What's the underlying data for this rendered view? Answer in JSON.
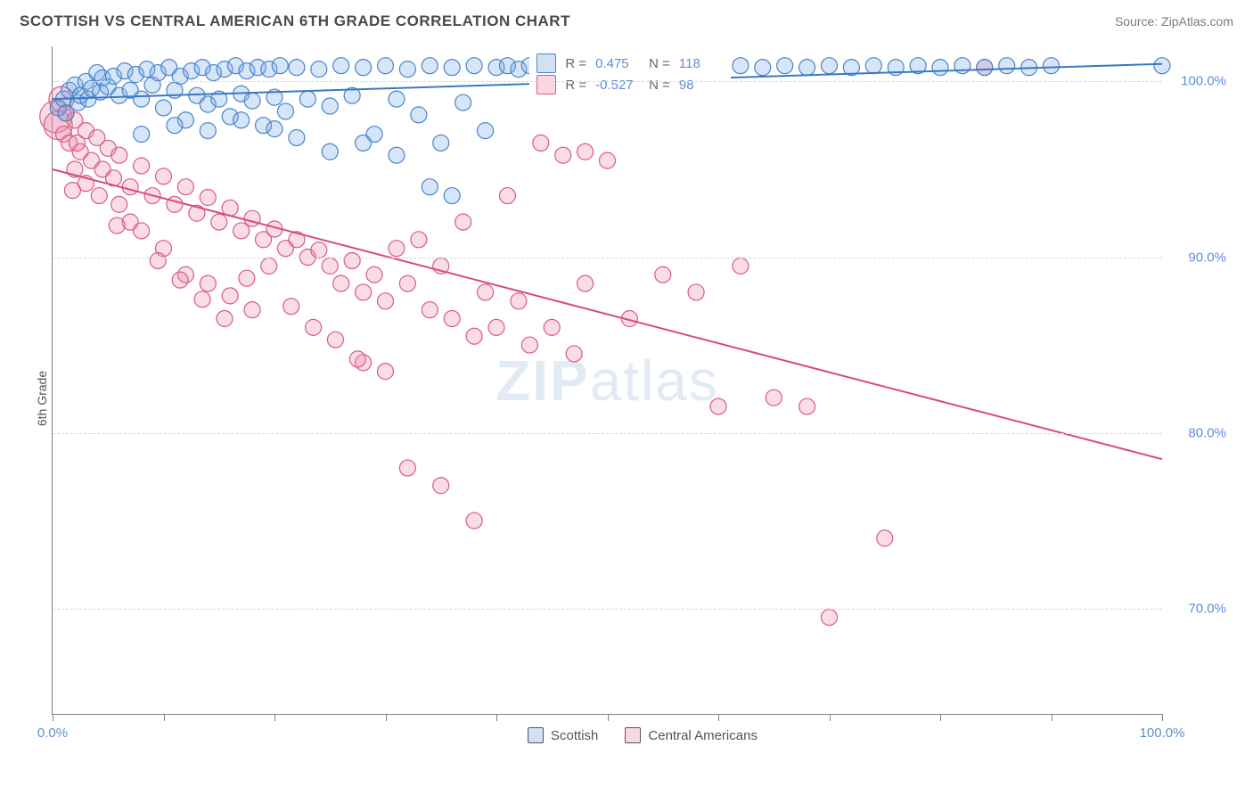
{
  "header": {
    "title": "SCOTTISH VS CENTRAL AMERICAN 6TH GRADE CORRELATION CHART",
    "source": "Source: ZipAtlas.com"
  },
  "chart": {
    "type": "scatter",
    "ylabel": "6th Grade",
    "watermark_a": "ZIP",
    "watermark_b": "atlas",
    "xlim": [
      0,
      100
    ],
    "ylim": [
      64,
      102
    ],
    "xtick_positions": [
      0,
      10,
      20,
      30,
      40,
      50,
      60,
      70,
      80,
      90,
      100
    ],
    "xtick_labels": {
      "0": "0.0%",
      "100": "100.0%"
    },
    "ytick_positions": [
      70,
      80,
      90,
      100
    ],
    "ytick_labels": [
      "70.0%",
      "80.0%",
      "90.0%",
      "100.0%"
    ],
    "grid_color": "#d8d8d8",
    "background_color": "#ffffff",
    "axis_color": "#808080",
    "tick_label_color": "#5b8fd6",
    "series": {
      "scottish": {
        "label": "Scottish",
        "color_fill": "rgba(120,170,230,0.30)",
        "color_stroke": "#4a85c9",
        "marker_radius": 9,
        "R_label": "R =",
        "R": "0.475",
        "N_label": "N =",
        "N": "118",
        "trend": {
          "x1": 0,
          "y1": 99.0,
          "x2": 100,
          "y2": 101.0,
          "color": "#3a78c2",
          "width": 2
        },
        "points": [
          {
            "x": 0.5,
            "y": 98.5
          },
          {
            "x": 1,
            "y": 99.0
          },
          {
            "x": 1.2,
            "y": 98.2
          },
          {
            "x": 1.5,
            "y": 99.5
          },
          {
            "x": 2,
            "y": 99.8
          },
          {
            "x": 2.3,
            "y": 98.8
          },
          {
            "x": 2.5,
            "y": 99.2
          },
          {
            "x": 3,
            "y": 100.0
          },
          {
            "x": 3.2,
            "y": 99.0
          },
          {
            "x": 3.5,
            "y": 99.6
          },
          {
            "x": 4,
            "y": 100.5
          },
          {
            "x": 4.3,
            "y": 99.4
          },
          {
            "x": 4.5,
            "y": 100.2
          },
          {
            "x": 5,
            "y": 99.7
          },
          {
            "x": 5.5,
            "y": 100.3
          },
          {
            "x": 6,
            "y": 99.2
          },
          {
            "x": 6.5,
            "y": 100.6
          },
          {
            "x": 7,
            "y": 99.5
          },
          {
            "x": 7.5,
            "y": 100.4
          },
          {
            "x": 8,
            "y": 99.0
          },
          {
            "x": 8.5,
            "y": 100.7
          },
          {
            "x": 9,
            "y": 99.8
          },
          {
            "x": 9.5,
            "y": 100.5
          },
          {
            "x": 10,
            "y": 98.5
          },
          {
            "x": 10.5,
            "y": 100.8
          },
          {
            "x": 11,
            "y": 99.5
          },
          {
            "x": 11.5,
            "y": 100.3
          },
          {
            "x": 12,
            "y": 97.8
          },
          {
            "x": 12.5,
            "y": 100.6
          },
          {
            "x": 13,
            "y": 99.2
          },
          {
            "x": 13.5,
            "y": 100.8
          },
          {
            "x": 14,
            "y": 98.7
          },
          {
            "x": 14.5,
            "y": 100.5
          },
          {
            "x": 15,
            "y": 99.0
          },
          {
            "x": 15.5,
            "y": 100.7
          },
          {
            "x": 16,
            "y": 98.0
          },
          {
            "x": 16.5,
            "y": 100.9
          },
          {
            "x": 17,
            "y": 99.3
          },
          {
            "x": 17.5,
            "y": 100.6
          },
          {
            "x": 18,
            "y": 98.9
          },
          {
            "x": 18.5,
            "y": 100.8
          },
          {
            "x": 19,
            "y": 97.5
          },
          {
            "x": 19.5,
            "y": 100.7
          },
          {
            "x": 20,
            "y": 99.1
          },
          {
            "x": 20.5,
            "y": 100.9
          },
          {
            "x": 21,
            "y": 98.3
          },
          {
            "x": 22,
            "y": 100.8
          },
          {
            "x": 23,
            "y": 99.0
          },
          {
            "x": 24,
            "y": 100.7
          },
          {
            "x": 25,
            "y": 98.6
          },
          {
            "x": 26,
            "y": 100.9
          },
          {
            "x": 27,
            "y": 99.2
          },
          {
            "x": 28,
            "y": 100.8
          },
          {
            "x": 29,
            "y": 97.0
          },
          {
            "x": 30,
            "y": 100.9
          },
          {
            "x": 31,
            "y": 99.0
          },
          {
            "x": 32,
            "y": 100.7
          },
          {
            "x": 33,
            "y": 98.1
          },
          {
            "x": 34,
            "y": 100.9
          },
          {
            "x": 35,
            "y": 96.5
          },
          {
            "x": 36,
            "y": 100.8
          },
          {
            "x": 37,
            "y": 98.8
          },
          {
            "x": 38,
            "y": 100.9
          },
          {
            "x": 39,
            "y": 97.2
          },
          {
            "x": 40,
            "y": 100.8
          },
          {
            "x": 41,
            "y": 100.9
          },
          {
            "x": 42,
            "y": 100.7
          },
          {
            "x": 43,
            "y": 100.9
          },
          {
            "x": 44,
            "y": 100.8
          },
          {
            "x": 45,
            "y": 100.9
          },
          {
            "x": 46,
            "y": 100.7
          },
          {
            "x": 47,
            "y": 100.9
          },
          {
            "x": 48,
            "y": 100.8
          },
          {
            "x": 49,
            "y": 100.9
          },
          {
            "x": 50,
            "y": 100.7
          },
          {
            "x": 51,
            "y": 100.9
          },
          {
            "x": 52,
            "y": 100.8
          },
          {
            "x": 53,
            "y": 100.9
          },
          {
            "x": 54,
            "y": 100.7
          },
          {
            "x": 55,
            "y": 100.9
          },
          {
            "x": 56,
            "y": 100.8
          },
          {
            "x": 58,
            "y": 100.9
          },
          {
            "x": 60,
            "y": 100.8
          },
          {
            "x": 62,
            "y": 100.9
          },
          {
            "x": 64,
            "y": 100.8
          },
          {
            "x": 66,
            "y": 100.9
          },
          {
            "x": 68,
            "y": 100.8
          },
          {
            "x": 70,
            "y": 100.9
          },
          {
            "x": 72,
            "y": 100.8
          },
          {
            "x": 74,
            "y": 100.9
          },
          {
            "x": 76,
            "y": 100.8
          },
          {
            "x": 78,
            "y": 100.9
          },
          {
            "x": 80,
            "y": 100.8
          },
          {
            "x": 82,
            "y": 100.9
          },
          {
            "x": 84,
            "y": 100.8
          },
          {
            "x": 86,
            "y": 100.9
          },
          {
            "x": 88,
            "y": 100.8
          },
          {
            "x": 90,
            "y": 100.9
          },
          {
            "x": 100,
            "y": 100.9
          },
          {
            "x": 8,
            "y": 97.0
          },
          {
            "x": 11,
            "y": 97.5
          },
          {
            "x": 14,
            "y": 97.2
          },
          {
            "x": 17,
            "y": 97.8
          },
          {
            "x": 20,
            "y": 97.3
          },
          {
            "x": 22,
            "y": 96.8
          },
          {
            "x": 25,
            "y": 96.0
          },
          {
            "x": 28,
            "y": 96.5
          },
          {
            "x": 31,
            "y": 95.8
          },
          {
            "x": 34,
            "y": 94.0
          },
          {
            "x": 36,
            "y": 93.5
          }
        ]
      },
      "central_americans": {
        "label": "Central Americans",
        "color_fill": "rgba(235,140,170,0.30)",
        "color_stroke": "#d95b85",
        "marker_radius": 9,
        "R_label": "R =",
        "R": "-0.527",
        "N_label": "N =",
        "N": "98",
        "trend": {
          "x1": 0,
          "y1": 95.0,
          "x2": 100,
          "y2": 78.5,
          "color": "#d94a78",
          "width": 2
        },
        "points": [
          {
            "x": 0.3,
            "y": 98.0,
            "r": 18
          },
          {
            "x": 0.5,
            "y": 97.5,
            "r": 16
          },
          {
            "x": 0.8,
            "y": 99.0,
            "r": 14
          },
          {
            "x": 1,
            "y": 97.0
          },
          {
            "x": 1.2,
            "y": 98.2
          },
          {
            "x": 1.5,
            "y": 96.5
          },
          {
            "x": 2,
            "y": 97.8
          },
          {
            "x": 2.5,
            "y": 96.0
          },
          {
            "x": 3,
            "y": 97.2
          },
          {
            "x": 3.5,
            "y": 95.5
          },
          {
            "x": 4,
            "y": 96.8
          },
          {
            "x": 4.5,
            "y": 95.0
          },
          {
            "x": 5,
            "y": 96.2
          },
          {
            "x": 5.5,
            "y": 94.5
          },
          {
            "x": 6,
            "y": 95.8
          },
          {
            "x": 7,
            "y": 94.0
          },
          {
            "x": 8,
            "y": 95.2
          },
          {
            "x": 9,
            "y": 93.5
          },
          {
            "x": 10,
            "y": 94.6
          },
          {
            "x": 11,
            "y": 93.0
          },
          {
            "x": 12,
            "y": 94.0
          },
          {
            "x": 13,
            "y": 92.5
          },
          {
            "x": 14,
            "y": 93.4
          },
          {
            "x": 15,
            "y": 92.0
          },
          {
            "x": 16,
            "y": 92.8
          },
          {
            "x": 17,
            "y": 91.5
          },
          {
            "x": 18,
            "y": 92.2
          },
          {
            "x": 19,
            "y": 91.0
          },
          {
            "x": 20,
            "y": 91.6
          },
          {
            "x": 21,
            "y": 90.5
          },
          {
            "x": 22,
            "y": 91.0
          },
          {
            "x": 23,
            "y": 90.0
          },
          {
            "x": 24,
            "y": 90.4
          },
          {
            "x": 25,
            "y": 89.5
          },
          {
            "x": 26,
            "y": 88.5
          },
          {
            "x": 27,
            "y": 89.8
          },
          {
            "x": 28,
            "y": 88.0
          },
          {
            "x": 29,
            "y": 89.0
          },
          {
            "x": 30,
            "y": 87.5
          },
          {
            "x": 31,
            "y": 90.5
          },
          {
            "x": 32,
            "y": 88.5
          },
          {
            "x": 33,
            "y": 91.0
          },
          {
            "x": 34,
            "y": 87.0
          },
          {
            "x": 35,
            "y": 89.5
          },
          {
            "x": 36,
            "y": 86.5
          },
          {
            "x": 37,
            "y": 92.0
          },
          {
            "x": 38,
            "y": 85.5
          },
          {
            "x": 39,
            "y": 88.0
          },
          {
            "x": 40,
            "y": 86.0
          },
          {
            "x": 41,
            "y": 93.5
          },
          {
            "x": 42,
            "y": 87.5
          },
          {
            "x": 43,
            "y": 85.0
          },
          {
            "x": 44,
            "y": 96.5
          },
          {
            "x": 45,
            "y": 86.0
          },
          {
            "x": 46,
            "y": 95.8
          },
          {
            "x": 47,
            "y": 84.5
          },
          {
            "x": 48,
            "y": 88.5
          },
          {
            "x": 50,
            "y": 95.5
          },
          {
            "x": 52,
            "y": 86.5
          },
          {
            "x": 55,
            "y": 89.0
          },
          {
            "x": 58,
            "y": 88.0
          },
          {
            "x": 60,
            "y": 81.5
          },
          {
            "x": 62,
            "y": 89.5
          },
          {
            "x": 65,
            "y": 82.0
          },
          {
            "x": 68,
            "y": 81.5
          },
          {
            "x": 70,
            "y": 69.5
          },
          {
            "x": 75,
            "y": 74.0
          },
          {
            "x": 32,
            "y": 78.0
          },
          {
            "x": 35,
            "y": 77.0
          },
          {
            "x": 38,
            "y": 75.0
          },
          {
            "x": 28,
            "y": 84.0
          },
          {
            "x": 30,
            "y": 83.5
          },
          {
            "x": 84,
            "y": 100.8
          },
          {
            "x": 10,
            "y": 90.5
          },
          {
            "x": 12,
            "y": 89.0
          },
          {
            "x": 14,
            "y": 88.5
          },
          {
            "x": 16,
            "y": 87.8
          },
          {
            "x": 18,
            "y": 87.0
          },
          {
            "x": 6,
            "y": 93.0
          },
          {
            "x": 7,
            "y": 92.0
          },
          {
            "x": 8,
            "y": 91.5
          },
          {
            "x": 2,
            "y": 95.0
          },
          {
            "x": 3,
            "y": 94.2
          },
          {
            "x": 1.8,
            "y": 93.8
          },
          {
            "x": 2.2,
            "y": 96.5
          },
          {
            "x": 4.2,
            "y": 93.5
          },
          {
            "x": 5.8,
            "y": 91.8
          },
          {
            "x": 9.5,
            "y": 89.8
          },
          {
            "x": 11.5,
            "y": 88.7
          },
          {
            "x": 13.5,
            "y": 87.6
          },
          {
            "x": 15.5,
            "y": 86.5
          },
          {
            "x": 17.5,
            "y": 88.8
          },
          {
            "x": 19.5,
            "y": 89.5
          },
          {
            "x": 21.5,
            "y": 87.2
          },
          {
            "x": 23.5,
            "y": 86.0
          },
          {
            "x": 25.5,
            "y": 85.3
          },
          {
            "x": 27.5,
            "y": 84.2
          },
          {
            "x": 48,
            "y": 96.0
          }
        ]
      }
    }
  }
}
